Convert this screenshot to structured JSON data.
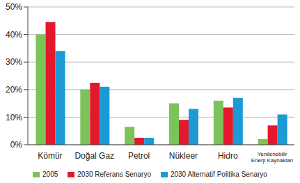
{
  "chart_data": {
    "type": "bar",
    "categories": [
      "Kömür",
      "Doğal Gaz",
      "Petrol",
      "Nükleer",
      "Hidro",
      "Yenilenebilir Enerji Kaynakları"
    ],
    "series": [
      {
        "name": "2005",
        "color": "#7cc35a",
        "values": [
          40,
          20,
          6.5,
          15,
          16,
          2
        ]
      },
      {
        "name": "2030 Referans Senaryo",
        "color": "#e3182d",
        "values": [
          44.5,
          22.5,
          2.5,
          9,
          13.5,
          7
        ]
      },
      {
        "name": "2030 Alternatif Politika Senaryo",
        "color": "#1b9ad6",
        "values": [
          34,
          21,
          2.5,
          13,
          17,
          11
        ]
      }
    ],
    "ylim": [
      0,
      50
    ],
    "yticks": [
      {
        "value": 0,
        "label": "0%"
      },
      {
        "value": 10,
        "label": "10%"
      },
      {
        "value": 20,
        "label": "20%"
      },
      {
        "value": 30,
        "label": "30%"
      },
      {
        "value": 40,
        "label": "40%"
      },
      {
        "value": 50,
        "label": "50%"
      }
    ],
    "grid": true
  }
}
